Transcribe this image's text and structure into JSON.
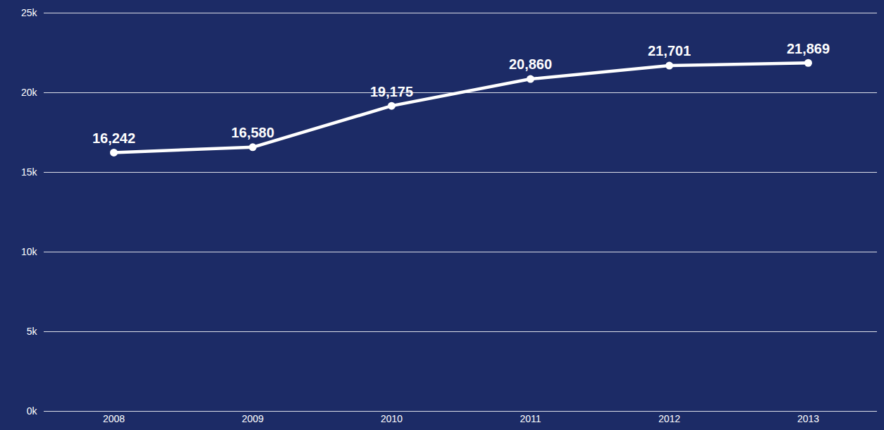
{
  "chart_data": {
    "type": "line",
    "categories": [
      "2008",
      "2009",
      "2010",
      "2011",
      "2012",
      "2013"
    ],
    "values": [
      16242,
      16580,
      19175,
      20860,
      21701,
      21869
    ],
    "value_labels": [
      "16,242",
      "16,580",
      "19,175",
      "20,860",
      "21,701",
      "21,869"
    ],
    "data_labels": true,
    "color": "#ffffff",
    "marker": "circle",
    "ylim": [
      0,
      25000
    ],
    "yticks": [
      {
        "value": 0,
        "label": "0k"
      },
      {
        "value": 5000,
        "label": "5k"
      },
      {
        "value": 10000,
        "label": "10k"
      },
      {
        "value": 15000,
        "label": "15k"
      },
      {
        "value": 20000,
        "label": "20k"
      },
      {
        "value": 25000,
        "label": "25k"
      }
    ],
    "grid": true
  }
}
